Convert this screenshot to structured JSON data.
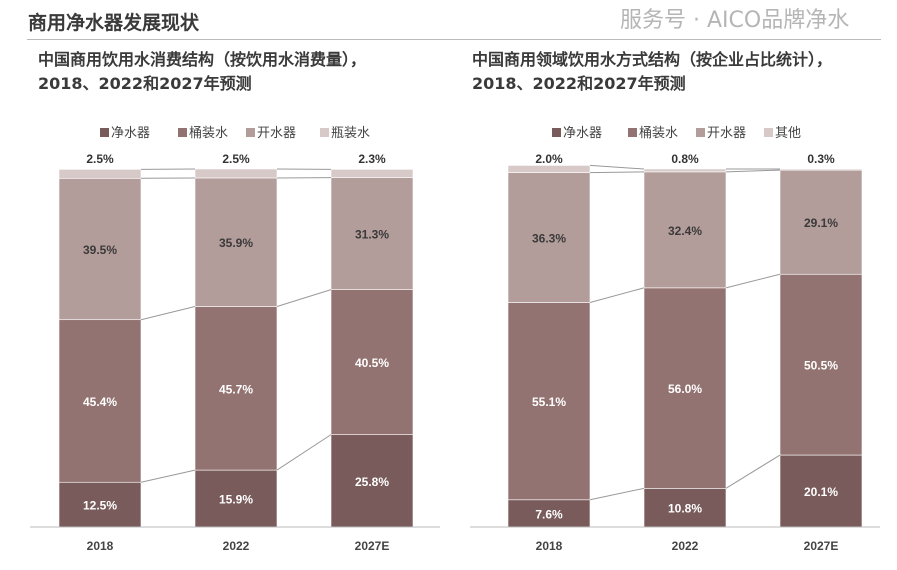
{
  "page_title": "商用净水器发展现状",
  "watermark": "服务号 · AICO品牌净水",
  "chart_data": [
    {
      "type": "bar",
      "stacked": true,
      "title_line1": "中国商用饮用水消费结构（按饮用水消费量），",
      "title_line2": "2018、2022和2027年预测",
      "categories": [
        "2018",
        "2022",
        "2027E"
      ],
      "legend_position": "top",
      "series": [
        {
          "name": "净水器",
          "color": "#7a5b5b",
          "values": [
            12.5,
            15.9,
            25.8
          ]
        },
        {
          "name": "桶装水",
          "color": "#937371",
          "values": [
            45.4,
            45.7,
            40.5
          ]
        },
        {
          "name": "开水器",
          "color": "#b39d9b",
          "values": [
            39.5,
            35.9,
            31.3
          ]
        },
        {
          "name": "瓶装水",
          "color": "#d6c9c8",
          "values": [
            2.5,
            2.5,
            2.3
          ]
        }
      ],
      "unit": "%",
      "ylim": [
        0,
        100
      ]
    },
    {
      "type": "bar",
      "stacked": true,
      "title_line1": "中国商用领域饮用水方式结构（按企业占比统计），",
      "title_line2": "2018、2022和2027年预测",
      "categories": [
        "2018",
        "2022",
        "2027E"
      ],
      "legend_position": "top",
      "series": [
        {
          "name": "净水器",
          "color": "#7a5b5b",
          "values": [
            7.6,
            10.8,
            20.1
          ]
        },
        {
          "name": "桶装水",
          "color": "#937371",
          "values": [
            55.1,
            56.0,
            50.5
          ]
        },
        {
          "name": "开水器",
          "color": "#b39d9b",
          "values": [
            36.3,
            32.4,
            29.1
          ]
        },
        {
          "name": "其他",
          "color": "#d6c9c8",
          "values": [
            2.0,
            0.8,
            0.3
          ]
        }
      ],
      "unit": "%",
      "ylim": [
        0,
        100
      ]
    }
  ]
}
